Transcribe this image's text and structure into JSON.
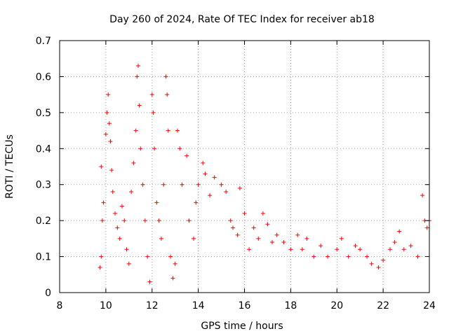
{
  "chart_data": {
    "type": "scatter",
    "title": "Day 260 of 2024, Rate Of TEC Index for receiver ab18",
    "xlabel": "GPS time / hours",
    "ylabel": "ROTI / TECUs",
    "xlim": [
      8,
      24
    ],
    "ylim": [
      0,
      0.7
    ],
    "xticks": [
      8,
      10,
      12,
      14,
      16,
      18,
      20,
      22,
      24
    ],
    "yticks": [
      0,
      0.1,
      0.2,
      0.3,
      0.4,
      0.5,
      0.6,
      0.7
    ],
    "xtick_labels": [
      "8",
      "10",
      "12",
      "14",
      "16",
      "18",
      "20",
      "22",
      "24"
    ],
    "ytick_labels": [
      "0",
      "0.1",
      "0.2",
      "0.3",
      "0.4",
      "0.5",
      "0.6",
      "0.7"
    ],
    "grid": true,
    "marker": "+",
    "series": [
      {
        "name": "ROTI",
        "color": "#ff0000",
        "points": [
          [
            9.75,
            0.07
          ],
          [
            9.8,
            0.1
          ],
          [
            9.8,
            0.35
          ],
          [
            9.85,
            0.2
          ],
          [
            9.9,
            0.25
          ],
          [
            10.0,
            0.44
          ],
          [
            10.05,
            0.5
          ],
          [
            10.1,
            0.55
          ],
          [
            10.15,
            0.47
          ],
          [
            10.2,
            0.42
          ],
          [
            10.25,
            0.34
          ],
          [
            10.3,
            0.28
          ],
          [
            10.4,
            0.22
          ],
          [
            10.5,
            0.18
          ],
          [
            10.6,
            0.15
          ],
          [
            10.7,
            0.24
          ],
          [
            10.8,
            0.2
          ],
          [
            10.9,
            0.12
          ],
          [
            11.0,
            0.08
          ],
          [
            11.1,
            0.28
          ],
          [
            11.2,
            0.36
          ],
          [
            11.3,
            0.45
          ],
          [
            11.35,
            0.6
          ],
          [
            11.4,
            0.63
          ],
          [
            11.45,
            0.52
          ],
          [
            11.5,
            0.4
          ],
          [
            11.6,
            0.3
          ],
          [
            11.7,
            0.2
          ],
          [
            11.8,
            0.1
          ],
          [
            11.9,
            0.03
          ],
          [
            12.0,
            0.55
          ],
          [
            12.05,
            0.5
          ],
          [
            12.1,
            0.4
          ],
          [
            12.2,
            0.25
          ],
          [
            12.3,
            0.2
          ],
          [
            12.4,
            0.15
          ],
          [
            12.5,
            0.3
          ],
          [
            12.6,
            0.6
          ],
          [
            12.65,
            0.55
          ],
          [
            12.7,
            0.45
          ],
          [
            12.8,
            0.1
          ],
          [
            12.9,
            0.04
          ],
          [
            13.0,
            0.08
          ],
          [
            13.1,
            0.45
          ],
          [
            13.2,
            0.4
          ],
          [
            13.3,
            0.3
          ],
          [
            13.5,
            0.38
          ],
          [
            13.6,
            0.2
          ],
          [
            13.8,
            0.15
          ],
          [
            13.9,
            0.25
          ],
          [
            14.0,
            0.3
          ],
          [
            14.2,
            0.36
          ],
          [
            14.3,
            0.33
          ],
          [
            14.5,
            0.27
          ],
          [
            14.7,
            0.32
          ],
          [
            15.0,
            0.3
          ],
          [
            15.2,
            0.28
          ],
          [
            15.4,
            0.2
          ],
          [
            15.5,
            0.18
          ],
          [
            15.7,
            0.16
          ],
          [
            15.8,
            0.29
          ],
          [
            16.0,
            0.22
          ],
          [
            16.2,
            0.12
          ],
          [
            16.4,
            0.18
          ],
          [
            16.6,
            0.15
          ],
          [
            16.8,
            0.22
          ],
          [
            17.0,
            0.19
          ],
          [
            17.2,
            0.14
          ],
          [
            17.4,
            0.16
          ],
          [
            17.7,
            0.14
          ],
          [
            18.0,
            0.12
          ],
          [
            18.3,
            0.16
          ],
          [
            18.5,
            0.12
          ],
          [
            18.7,
            0.15
          ],
          [
            19.0,
            0.1
          ],
          [
            19.3,
            0.13
          ],
          [
            19.6,
            0.1
          ],
          [
            20.0,
            0.12
          ],
          [
            20.2,
            0.15
          ],
          [
            20.5,
            0.1
          ],
          [
            20.8,
            0.13
          ],
          [
            21.0,
            0.12
          ],
          [
            21.3,
            0.1
          ],
          [
            21.5,
            0.08
          ],
          [
            21.8,
            0.07
          ],
          [
            22.0,
            0.09
          ],
          [
            22.3,
            0.12
          ],
          [
            22.5,
            0.14
          ],
          [
            22.7,
            0.17
          ],
          [
            22.9,
            0.12
          ],
          [
            23.2,
            0.13
          ],
          [
            23.5,
            0.1
          ],
          [
            23.7,
            0.27
          ],
          [
            23.8,
            0.2
          ],
          [
            23.9,
            0.18
          ],
          [
            24.0,
            0.2
          ]
        ]
      }
    ]
  }
}
